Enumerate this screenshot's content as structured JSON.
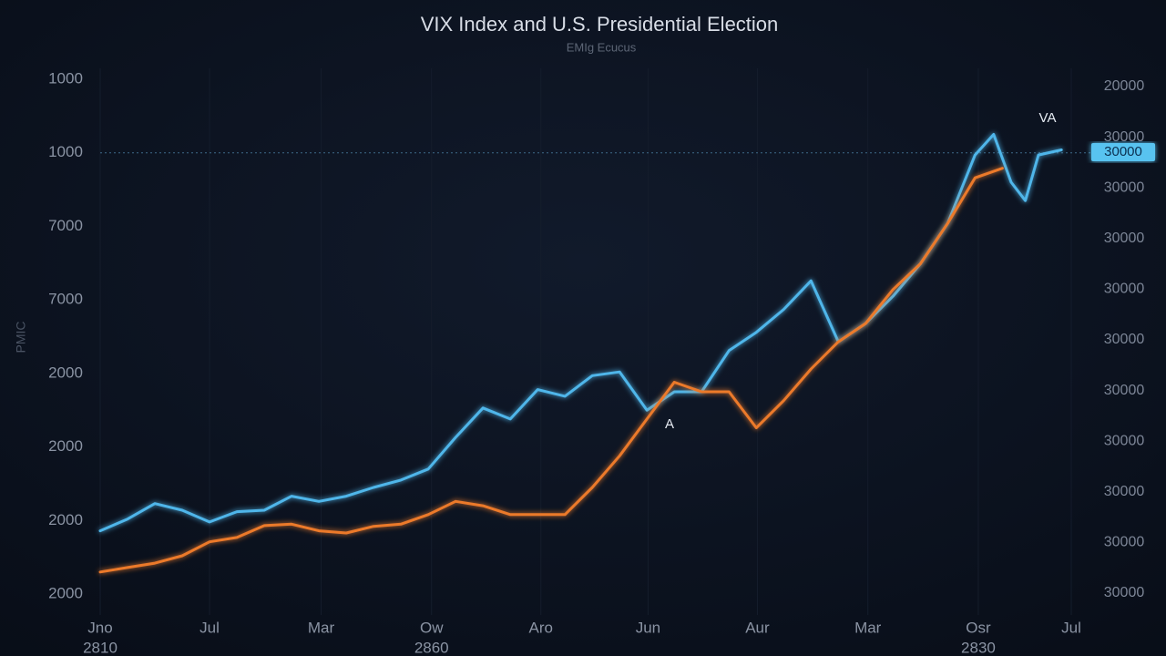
{
  "chart_data": {
    "type": "line",
    "title": "VIX Index and U.S. Presidential Election",
    "subtitle": "EMIg Ecucus",
    "y_label": "PMIC",
    "xlim": [
      0,
      9.08
    ],
    "xticks": [
      {
        "value": 0,
        "label": "Jno"
      },
      {
        "value": 1,
        "label": "Jul"
      },
      {
        "value": 2.02,
        "label": "Mar"
      },
      {
        "value": 3.03,
        "label": "Ow"
      },
      {
        "value": 4.03,
        "label": "Aro"
      },
      {
        "value": 5.01,
        "label": "Jun"
      },
      {
        "value": 6.01,
        "label": "Aur"
      },
      {
        "value": 7.02,
        "label": "Mar"
      },
      {
        "value": 8.03,
        "label": "Osr"
      },
      {
        "value": 8.88,
        "label": "Jul"
      }
    ],
    "year_ticks": [
      {
        "value": 0,
        "label": "2810"
      },
      {
        "value": 3.03,
        "label": "2860"
      },
      {
        "value": 8.03,
        "label": "2830"
      }
    ],
    "ylim": [
      0,
      7
    ],
    "yticks": [
      {
        "value": 0,
        "label": "2000"
      },
      {
        "value": 1,
        "label": "2000"
      },
      {
        "value": 2,
        "label": "2000"
      },
      {
        "value": 3,
        "label": "2000"
      },
      {
        "value": 4,
        "label": "7000"
      },
      {
        "value": 5,
        "label": "7000"
      },
      {
        "value": 6,
        "label": "1000"
      },
      {
        "value": 7,
        "label": "1000"
      }
    ],
    "y2lim": [
      0,
      10
    ],
    "y2ticks": [
      {
        "value": 0,
        "label": "30000"
      },
      {
        "value": 1,
        "label": "30000"
      },
      {
        "value": 2,
        "label": "30000"
      },
      {
        "value": 3,
        "label": "30000"
      },
      {
        "value": 4,
        "label": "30000"
      },
      {
        "value": 5,
        "label": "30000"
      },
      {
        "value": 6,
        "label": "30000"
      },
      {
        "value": 7,
        "label": "30000"
      },
      {
        "value": 8,
        "label": "30000"
      },
      {
        "value": 9,
        "label": "30000"
      },
      {
        "value": 10,
        "label": "20000"
      }
    ],
    "current_value_label": "30000",
    "annotations": [
      "A",
      "VA"
    ],
    "series": [
      {
        "color": "#4fb6ea",
        "x": [
          0,
          0.25,
          0.5,
          0.75,
          1,
          1.25,
          1.5,
          1.75,
          2,
          2.25,
          2.5,
          2.75,
          3,
          3.25,
          3.5,
          3.75,
          4,
          4.25,
          4.5,
          4.75,
          5,
          5.25,
          5.5,
          5.75,
          6,
          6.25,
          6.5,
          6.75,
          7,
          7.25,
          7.5,
          7.75,
          8,
          8.17,
          8.33,
          8.46,
          8.58,
          8.79
        ],
        "values": [
          0.86,
          1.02,
          1.23,
          1.14,
          0.98,
          1.12,
          1.14,
          1.33,
          1.26,
          1.33,
          1.45,
          1.55,
          1.7,
          2.13,
          2.53,
          2.38,
          2.78,
          2.69,
          2.97,
          3.02,
          2.5,
          2.75,
          2.75,
          3.31,
          3.56,
          3.87,
          4.26,
          3.43,
          3.68,
          4.05,
          4.49,
          5.04,
          5.97,
          6.25,
          5.6,
          5.35,
          5.97,
          6.04
        ]
      },
      {
        "color": "#ec7a2c",
        "x": [
          0,
          0.25,
          0.5,
          0.75,
          1,
          1.25,
          1.5,
          1.75,
          2,
          2.25,
          2.5,
          2.75,
          3,
          3.25,
          3.5,
          3.75,
          4,
          4.25,
          4.5,
          4.75,
          5,
          5.25,
          5.5,
          5.75,
          6,
          6.25,
          6.5,
          6.75,
          7,
          7.25,
          7.5,
          7.75,
          8,
          8.25
        ],
        "values": [
          0.3,
          0.36,
          0.42,
          0.52,
          0.71,
          0.77,
          0.93,
          0.95,
          0.86,
          0.83,
          0.92,
          0.95,
          1.08,
          1.26,
          1.2,
          1.08,
          1.08,
          1.08,
          1.45,
          1.88,
          2.38,
          2.88,
          2.75,
          2.75,
          2.26,
          2.63,
          3.06,
          3.43,
          3.68,
          4.14,
          4.49,
          5.04,
          5.66,
          5.79
        ]
      }
    ]
  }
}
